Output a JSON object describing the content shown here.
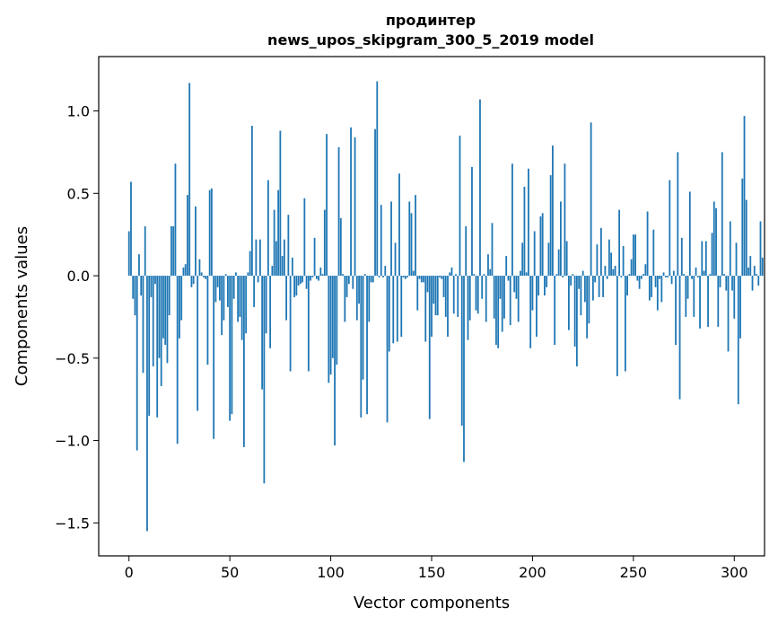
{
  "chart_data": {
    "type": "bar",
    "title_line1": "продинтер",
    "title_line2": "news_upos_skipgram_300_5_2019 model",
    "xlabel": "Vector components",
    "ylabel": "Components values",
    "xlim": [
      -15,
      315
    ],
    "ylim": [
      -1.7,
      1.33
    ],
    "xticks": [
      0,
      50,
      100,
      150,
      200,
      250,
      300
    ],
    "yticks": [
      -1.5,
      -1.0,
      -0.5,
      0.0,
      0.5,
      1.0
    ],
    "ytick_labels": [
      "−1.5",
      "−1.0",
      "−0.5",
      "0.0",
      "0.5",
      "1.0"
    ],
    "bar_color": "#1f77b4",
    "values": [
      0.27,
      0.57,
      -0.14,
      -0.24,
      -1.06,
      0.13,
      -0.12,
      -0.59,
      0.3,
      -1.55,
      -0.85,
      -0.13,
      -0.55,
      -0.05,
      -0.86,
      -0.5,
      -0.67,
      -0.38,
      -0.42,
      -0.53,
      -0.24,
      0.3,
      0.3,
      0.68,
      -1.02,
      -0.38,
      -0.27,
      0.05,
      0.07,
      0.49,
      1.17,
      -0.07,
      -0.05,
      0.42,
      -0.82,
      0.1,
      0.02,
      -0.01,
      -0.02,
      -0.54,
      0.52,
      0.53,
      -0.99,
      -0.16,
      -0.07,
      -0.15,
      -0.36,
      -0.27,
      0.01,
      -0.19,
      -0.88,
      -0.84,
      -0.14,
      0.02,
      -0.28,
      -0.25,
      -0.39,
      -1.04,
      -0.35,
      0.02,
      0.15,
      0.91,
      -0.19,
      0.22,
      -0.04,
      0.22,
      -0.69,
      -1.26,
      -0.35,
      0.58,
      -0.44,
      0.06,
      0.4,
      0.21,
      0.52,
      0.88,
      0.12,
      0.22,
      -0.27,
      0.37,
      -0.58,
      0.11,
      -0.13,
      -0.12,
      -0.06,
      -0.05,
      -0.04,
      0.47,
      -0.08,
      -0.58,
      -0.03,
      -0.01,
      0.23,
      -0.02,
      -0.03,
      0.05,
      0.01,
      0.4,
      0.86,
      -0.65,
      -0.6,
      -0.5,
      -1.03,
      -0.54,
      0.78,
      0.35,
      0.01,
      -0.28,
      -0.13,
      -0.05,
      0.9,
      -0.08,
      0.84,
      -0.27,
      -0.17,
      -0.86,
      -0.63,
      0.01,
      -0.84,
      -0.28,
      -0.04,
      -0.04,
      0.89,
      1.18,
      -0.01,
      0.43,
      -0.01,
      0.06,
      -0.89,
      -0.46,
      0.45,
      -0.41,
      0.2,
      -0.4,
      0.62,
      -0.37,
      -0.01,
      -0.02,
      -0.01,
      0.45,
      0.38,
      0.03,
      0.49,
      -0.21,
      -0.02,
      -0.04,
      -0.04,
      -0.4,
      -0.1,
      -0.87,
      -0.37,
      -0.17,
      -0.24,
      -0.24,
      -0.01,
      -0.02,
      -0.13,
      -0.25,
      -0.37,
      0.02,
      0.05,
      -0.23,
      0.01,
      -0.25,
      0.85,
      -0.91,
      -1.13,
      0.3,
      -0.39,
      -0.27,
      0.66,
      0.01,
      -0.21,
      -0.23,
      1.07,
      -0.14,
      0.01,
      -0.28,
      0.13,
      0.04,
      0.32,
      -0.26,
      -0.42,
      -0.44,
      -0.14,
      -0.34,
      -0.26,
      0.12,
      -0.03,
      -0.3,
      0.68,
      -0.1,
      -0.14,
      -0.28,
      0.03,
      0.2,
      0.54,
      0.02,
      0.65,
      -0.44,
      -0.21,
      0.27,
      -0.37,
      -0.12,
      0.36,
      0.38,
      -0.12,
      -0.07,
      0.2,
      0.61,
      0.79,
      -0.42,
      0.01,
      0.16,
      0.45,
      -0.01,
      0.68,
      0.21,
      -0.33,
      -0.06,
      0.01,
      -0.43,
      -0.55,
      -0.08,
      -0.24,
      0.03,
      -0.16,
      -0.38,
      -0.29,
      0.93,
      -0.15,
      -0.04,
      0.19,
      -0.13,
      0.29,
      -0.13,
      0.06,
      -0.02,
      0.22,
      0.14,
      0.04,
      0.06,
      -0.61,
      0.4,
      -0.01,
      0.18,
      -0.58,
      -0.12,
      0.01,
      0.1,
      0.25,
      0.25,
      -0.03,
      -0.08,
      -0.02,
      0.01,
      0.07,
      0.39,
      -0.15,
      -0.13,
      0.28,
      -0.07,
      -0.21,
      -0.02,
      -0.16,
      0.02,
      -0.01,
      -0.01,
      0.58,
      -0.05,
      0.03,
      -0.42,
      0.75,
      -0.75,
      0.23,
      0.01,
      -0.25,
      -0.14,
      0.51,
      -0.02,
      -0.25,
      0.05,
      -0.01,
      -0.32,
      0.21,
      0.03,
      0.21,
      -0.31,
      0.01,
      0.26,
      0.45,
      0.41,
      -0.31,
      -0.07,
      0.75,
      0.01,
      -0.09,
      -0.46,
      0.33,
      -0.09,
      -0.26,
      0.2,
      -0.78,
      -0.38,
      0.59,
      0.97,
      0.46,
      0.05,
      0.12,
      -0.09,
      0.06,
      0.01,
      -0.06,
      0.33,
      0.11
    ]
  }
}
